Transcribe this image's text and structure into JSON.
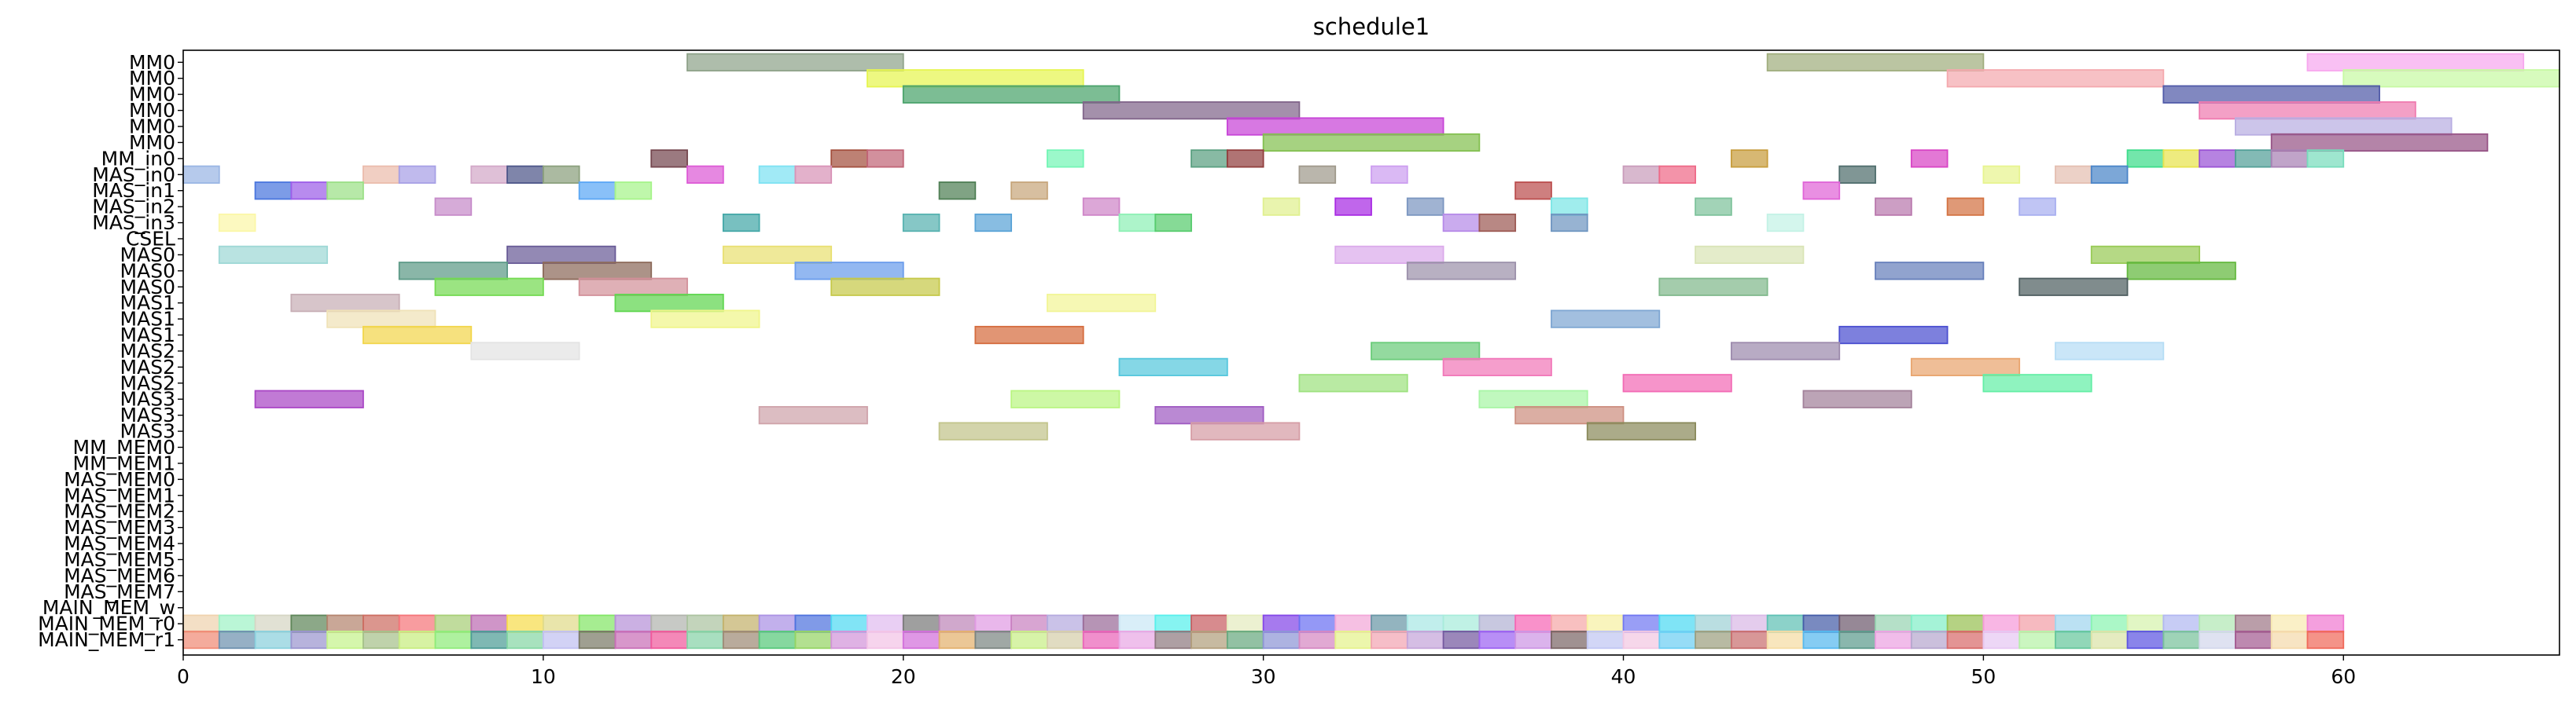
{
  "chart_data": {
    "type": "gantt",
    "title": "schedule1",
    "xlabel": "",
    "ylabel": "",
    "xlim": [
      0,
      66
    ],
    "x_ticks": [
      0,
      10,
      20,
      30,
      40,
      50,
      60
    ],
    "x_tick_labels": [
      "0",
      "10",
      "20",
      "30",
      "40",
      "50",
      "60"
    ],
    "rows": [
      "MM0",
      "MM0",
      "MM0",
      "MM0",
      "MM0",
      "MM0",
      "MM_in0",
      "MAS_in0",
      "MAS_in1",
      "MAS_in2",
      "MAS_in3",
      "CSEL",
      "MAS0",
      "MAS0",
      "MAS0",
      "MAS1",
      "MAS1",
      "MAS1",
      "MAS2",
      "MAS2",
      "MAS2",
      "MAS3",
      "MAS3",
      "MAS3",
      "MM_MEM0",
      "MM_MEM1",
      "MAS_MEM0",
      "MAS_MEM1",
      "MAS_MEM2",
      "MAS_MEM3",
      "MAS_MEM4",
      "MAS_MEM5",
      "MAS_MEM6",
      "MAS_MEM7",
      "MAIN_MEM_w",
      "MAIN_MEM_r0",
      "MAIN_MEM_r1"
    ],
    "bars": [
      [
        0,
        14,
        20,
        "#8fa38a"
      ],
      [
        0,
        44,
        50,
        "#a1ae7e"
      ],
      [
        0,
        59,
        65,
        "#f7a8ee"
      ],
      [
        1,
        19,
        25,
        "#e6f551"
      ],
      [
        1,
        49,
        55,
        "#f4a9ae"
      ],
      [
        1,
        60,
        66,
        "#c8f9a3"
      ],
      [
        2,
        20,
        26,
        "#4aa36b"
      ],
      [
        2,
        55,
        61,
        "#505aa8"
      ],
      [
        3,
        25,
        31,
        "#81658a"
      ],
      [
        3,
        56,
        62,
        "#ef7bb0"
      ],
      [
        4,
        29,
        35,
        "#c744d7"
      ],
      [
        4,
        57,
        63,
        "#b9aee2"
      ],
      [
        5,
        30,
        36,
        "#83c050"
      ],
      [
        5,
        58,
        64,
        "#975486"
      ],
      [
        6,
        13,
        14,
        "#75474f"
      ],
      [
        6,
        18,
        19,
        "#a4503f"
      ],
      [
        6,
        19,
        20,
        "#c16577"
      ],
      [
        6,
        24,
        25,
        "#75f5b6"
      ],
      [
        6,
        28,
        29,
        "#5aa081"
      ],
      [
        6,
        29,
        30,
        "#923f3e"
      ],
      [
        6,
        43,
        44,
        "#c79d3d"
      ],
      [
        6,
        48,
        49,
        "#d844c5"
      ],
      [
        6,
        54,
        55,
        "#3ddc8b"
      ],
      [
        6,
        55,
        56,
        "#e8e34e"
      ],
      [
        6,
        56,
        57,
        "#9a53d5"
      ],
      [
        6,
        57,
        58,
        "#53a098"
      ],
      [
        6,
        58,
        59,
        "#a781b4"
      ],
      [
        6,
        59,
        60,
        "#78dcbc"
      ],
      [
        7,
        0,
        1,
        "#9ab6e4"
      ],
      [
        7,
        5,
        6,
        "#ebbcac"
      ],
      [
        7,
        6,
        7,
        "#a7a0e6"
      ],
      [
        7,
        8,
        9,
        "#d2a8c8"
      ],
      [
        7,
        9,
        10,
        "#4d5689"
      ],
      [
        7,
        10,
        11,
        "#8ba07d"
      ],
      [
        7,
        14,
        15,
        "#dd5ad6"
      ],
      [
        7,
        16,
        17,
        "#7de2f3"
      ],
      [
        7,
        17,
        18,
        "#d893b7"
      ],
      [
        7,
        31,
        32,
        "#a09a8c"
      ],
      [
        7,
        33,
        34,
        "#cc9ef0"
      ],
      [
        7,
        40,
        41,
        "#c99cbb"
      ],
      [
        7,
        41,
        42,
        "#ee6a88"
      ],
      [
        7,
        46,
        47,
        "#4f6d6c"
      ],
      [
        7,
        50,
        51,
        "#e7f48f"
      ],
      [
        7,
        52,
        53,
        "#e4bfb1"
      ],
      [
        7,
        53,
        54,
        "#4a85c8"
      ],
      [
        8,
        2,
        3,
        "#4a76de"
      ],
      [
        8,
        3,
        4,
        "#9d5ee8"
      ],
      [
        8,
        4,
        5,
        "#9be087"
      ],
      [
        8,
        11,
        12,
        "#5ba7f5"
      ],
      [
        8,
        12,
        13,
        "#a6f48a"
      ],
      [
        8,
        21,
        22,
        "#4f7f55"
      ],
      [
        8,
        23,
        24,
        "#c7a67c"
      ],
      [
        8,
        37,
        38,
        "#bb4e4e"
      ],
      [
        8,
        45,
        46,
        "#e064d7"
      ],
      [
        9,
        7,
        8,
        "#c68bc9"
      ],
      [
        9,
        25,
        26,
        "#cf85c8"
      ],
      [
        9,
        30,
        31,
        "#e0f08f"
      ],
      [
        9,
        32,
        33,
        "#a82be3"
      ],
      [
        9,
        34,
        35,
        "#7b96c0"
      ],
      [
        9,
        38,
        39,
        "#7be6e6"
      ],
      [
        9,
        42,
        43,
        "#7ec29b"
      ],
      [
        9,
        47,
        48,
        "#b978ad"
      ],
      [
        9,
        49,
        50,
        "#d37242"
      ],
      [
        9,
        51,
        52,
        "#a7aef0"
      ],
      [
        10,
        1,
        2,
        "#fbf7a8"
      ],
      [
        10,
        15,
        16,
        "#44a8a8"
      ],
      [
        10,
        20,
        21,
        "#57b2b0"
      ],
      [
        10,
        22,
        23,
        "#5aa3d7"
      ],
      [
        10,
        26,
        27,
        "#8ef0b5"
      ],
      [
        10,
        27,
        28,
        "#58cc6e"
      ],
      [
        10,
        35,
        36,
        "#b68ae8"
      ],
      [
        10,
        36,
        37,
        "#9d5a54"
      ],
      [
        10,
        38,
        39,
        "#6f96c1"
      ],
      [
        10,
        44,
        45,
        "#c4f2e6"
      ],
      [
        12,
        1,
        4,
        "#9ed8d6"
      ],
      [
        12,
        9,
        12,
        "#695b97"
      ],
      [
        12,
        15,
        18,
        "#e9e072"
      ],
      [
        12,
        32,
        35,
        "#dbaaeb"
      ],
      [
        12,
        42,
        45,
        "#d9e4b6"
      ],
      [
        12,
        53,
        56,
        "#98cb56"
      ],
      [
        13,
        6,
        9,
        "#5d9a87"
      ],
      [
        13,
        10,
        13,
        "#8c6a5a"
      ],
      [
        13,
        17,
        20,
        "#6a9cec"
      ],
      [
        13,
        34,
        37,
        "#9c91ab"
      ],
      [
        13,
        47,
        50,
        "#667fbb"
      ],
      [
        13,
        54,
        57,
        "#63b83d"
      ],
      [
        14,
        7,
        10,
        "#74da52"
      ],
      [
        14,
        11,
        14,
        "#d2919a"
      ],
      [
        14,
        18,
        21,
        "#c6c94a"
      ],
      [
        14,
        41,
        44,
        "#81b98c"
      ],
      [
        14,
        51,
        54,
        "#4f5f61"
      ],
      [
        15,
        3,
        6,
        "#c7aeb5"
      ],
      [
        15,
        12,
        15,
        "#5fd64f"
      ],
      [
        15,
        24,
        27,
        "#f2f597"
      ],
      [
        16,
        4,
        7,
        "#f0e2b7"
      ],
      [
        16,
        13,
        16,
        "#f0f58a"
      ],
      [
        16,
        38,
        41,
        "#7ea6d2"
      ],
      [
        17,
        5,
        8,
        "#f2d64c"
      ],
      [
        17,
        22,
        25,
        "#d56c3e"
      ],
      [
        17,
        46,
        49,
        "#4b4fd0"
      ],
      [
        18,
        8,
        11,
        "#e3e3e3"
      ],
      [
        18,
        33,
        36,
        "#6bcc7a"
      ],
      [
        18,
        43,
        46,
        "#9d8bad"
      ],
      [
        18,
        52,
        55,
        "#b6ddf5"
      ],
      [
        19,
        26,
        29,
        "#56c7dd"
      ],
      [
        19,
        35,
        38,
        "#f178b9"
      ],
      [
        19,
        48,
        51,
        "#e9a56f"
      ],
      [
        20,
        31,
        34,
        "#9ee280"
      ],
      [
        20,
        40,
        43,
        "#f26bb5"
      ],
      [
        20,
        50,
        53,
        "#64eea6"
      ],
      [
        21,
        2,
        5,
        "#a946c5"
      ],
      [
        21,
        23,
        26,
        "#baf582"
      ],
      [
        21,
        36,
        39,
        "#a8f5a5"
      ],
      [
        21,
        45,
        48,
        "#a2819a"
      ],
      [
        22,
        16,
        19,
        "#cfa3aa"
      ],
      [
        22,
        27,
        30,
        "#9f5bc2"
      ],
      [
        22,
        37,
        40,
        "#cd8f80"
      ],
      [
        23,
        21,
        24,
        "#c2c48b"
      ],
      [
        23,
        28,
        31,
        "#d59da5"
      ],
      [
        23,
        39,
        42,
        "#8a8a5b"
      ],
      [
        35,
        0,
        1,
        "#efd3ae"
      ],
      [
        35,
        1,
        2,
        "#a0f2c6"
      ],
      [
        35,
        2,
        3,
        "#d6d6c4"
      ],
      [
        35,
        3,
        4,
        "#5f875a"
      ],
      [
        35,
        4,
        5,
        "#b4856f"
      ],
      [
        35,
        5,
        6,
        "#cd6e62"
      ],
      [
        35,
        6,
        7,
        "#f5767a"
      ],
      [
        35,
        7,
        8,
        "#a8cf77"
      ],
      [
        35,
        8,
        9,
        "#bd6cb3"
      ],
      [
        35,
        9,
        10,
        "#f7dd4e"
      ],
      [
        35,
        10,
        11,
        "#e1db8b"
      ],
      [
        35,
        11,
        12,
        "#83e667"
      ],
      [
        35,
        12,
        13,
        "#b791d8"
      ],
      [
        35,
        13,
        14,
        "#b2b4ae"
      ],
      [
        35,
        14,
        15,
        "#acc3a1"
      ],
      [
        35,
        15,
        16,
        "#c3b26c"
      ],
      [
        35,
        16,
        17,
        "#ab92e4"
      ],
      [
        35,
        17,
        18,
        "#4f73de"
      ],
      [
        35,
        18,
        19,
        "#50d9f2"
      ],
      [
        35,
        19,
        20,
        "#e0bdf0"
      ],
      [
        35,
        20,
        21,
        "#7a7a7a"
      ],
      [
        35,
        21,
        22,
        "#be87b8"
      ],
      [
        35,
        22,
        23,
        "#e19be3"
      ],
      [
        35,
        23,
        24,
        "#c982c1"
      ],
      [
        35,
        24,
        25,
        "#b5aadf"
      ],
      [
        35,
        25,
        26,
        "#9a6b98"
      ],
      [
        35,
        26,
        27,
        "#cbe8f5"
      ],
      [
        35,
        27,
        28,
        "#58f0ec"
      ],
      [
        35,
        28,
        29,
        "#c85e62"
      ],
      [
        35,
        29,
        30,
        "#e5ecbf"
      ],
      [
        35,
        30,
        31,
        "#8447e8"
      ],
      [
        35,
        31,
        32,
        "#6b70f2"
      ],
      [
        35,
        32,
        33,
        "#f3a7d8"
      ],
      [
        35,
        33,
        34,
        "#6a97a6"
      ],
      [
        35,
        34,
        35,
        "#a9e7e4"
      ],
      [
        35,
        35,
        36,
        "#a8ecdb"
      ],
      [
        35,
        36,
        37,
        "#b3b3d4"
      ],
      [
        35,
        37,
        38,
        "#f767b5"
      ],
      [
        35,
        38,
        39,
        "#f5a8a8"
      ],
      [
        35,
        39,
        40,
        "#f7f0a4"
      ],
      [
        35,
        40,
        41,
        "#7178f2"
      ],
      [
        35,
        41,
        42,
        "#4dd9f2"
      ],
      [
        35,
        42,
        43,
        "#9fd1d6"
      ],
      [
        35,
        43,
        44,
        "#dab9e6"
      ],
      [
        35,
        44,
        45,
        "#5fc1b4"
      ],
      [
        35,
        45,
        46,
        "#455da8"
      ],
      [
        35,
        46,
        47,
        "#6e5a6e"
      ],
      [
        35,
        47,
        48,
        "#99d4b3"
      ],
      [
        35,
        48,
        49,
        "#82efc8"
      ],
      [
        35,
        49,
        50,
        "#98c153"
      ],
      [
        35,
        50,
        51,
        "#f59ad9"
      ],
      [
        35,
        51,
        52,
        "#f29fa7"
      ],
      [
        35,
        52,
        53,
        "#a1d6ee"
      ],
      [
        35,
        53,
        54,
        "#8af4b1"
      ],
      [
        35,
        54,
        55,
        "#d6f2ad"
      ],
      [
        35,
        55,
        56,
        "#b2b8f1"
      ],
      [
        35,
        56,
        57,
        "#b2e8b4"
      ],
      [
        35,
        57,
        58,
        "#9f7888"
      ],
      [
        35,
        58,
        59,
        "#f8eab1"
      ],
      [
        35,
        59,
        60,
        "#f07ad1"
      ],
      [
        36,
        0,
        1,
        "#f08a76"
      ],
      [
        36,
        1,
        2,
        "#6e91af"
      ],
      [
        36,
        2,
        3,
        "#8ad0dd"
      ],
      [
        36,
        3,
        4,
        "#9b95cf"
      ],
      [
        36,
        4,
        5,
        "#c5f38c"
      ],
      [
        36,
        5,
        6,
        "#a6c18b"
      ],
      [
        36,
        6,
        7,
        "#c7ed80"
      ],
      [
        36,
        7,
        8,
        "#8fec7a"
      ],
      [
        36,
        8,
        9,
        "#4e9c96"
      ],
      [
        36,
        9,
        10,
        "#86d7a5"
      ],
      [
        36,
        10,
        11,
        "#c1c0f1"
      ],
      [
        36,
        11,
        12,
        "#7a7a66"
      ],
      [
        36,
        12,
        13,
        "#c96fb7"
      ],
      [
        36,
        13,
        14,
        "#f05a9c"
      ],
      [
        36,
        14,
        15,
        "#86d3a7"
      ],
      [
        36,
        15,
        16,
        "#9e8b76"
      ],
      [
        36,
        16,
        17,
        "#57c97a"
      ],
      [
        36,
        17,
        18,
        "#95d465"
      ],
      [
        36,
        18,
        19,
        "#d394d9"
      ],
      [
        36,
        19,
        20,
        "#f3c4e6"
      ],
      [
        36,
        20,
        21,
        "#d26fdb"
      ],
      [
        36,
        21,
        22,
        "#e3b16d"
      ],
      [
        36,
        22,
        23,
        "#7c8682"
      ],
      [
        36,
        23,
        24,
        "#c8ee87"
      ],
      [
        36,
        24,
        25,
        "#d6cfab"
      ],
      [
        36,
        25,
        26,
        "#ea64b9"
      ],
      [
        36,
        26,
        27,
        "#e9a7e4"
      ],
      [
        36,
        27,
        28,
        "#8f7a80"
      ],
      [
        36,
        28,
        29,
        "#b29f7d"
      ],
      [
        36,
        29,
        30,
        "#68a97f"
      ],
      [
        36,
        30,
        31,
        "#8e95d6"
      ],
      [
        36,
        31,
        32,
        "#d588c2"
      ],
      [
        36,
        32,
        33,
        "#e5f28c"
      ],
      [
        36,
        33,
        34,
        "#f2a5b3"
      ],
      [
        36,
        34,
        35,
        "#c5a5d9"
      ],
      [
        36,
        35,
        36,
        "#7459a0"
      ],
      [
        36,
        36,
        37,
        "#9d62f2"
      ],
      [
        36,
        37,
        38,
        "#cd95e4"
      ],
      [
        36,
        38,
        39,
        "#7b6666"
      ],
      [
        36,
        39,
        40,
        "#c1c6f3"
      ],
      [
        36,
        40,
        41,
        "#f2c7e2"
      ],
      [
        36,
        41,
        42,
        "#6ecff3"
      ],
      [
        36,
        42,
        43,
        "#9d9f80"
      ],
      [
        36,
        43,
        44,
        "#c96f6f"
      ],
      [
        36,
        44,
        45,
        "#f5dca4"
      ],
      [
        36,
        45,
        46,
        "#56b9ef"
      ],
      [
        36,
        46,
        47,
        "#5d9b8d"
      ],
      [
        36,
        47,
        48,
        "#eca2e2"
      ],
      [
        36,
        48,
        49,
        "#b7a7ce"
      ],
      [
        36,
        49,
        50,
        "#d86b6b"
      ],
      [
        36,
        50,
        51,
        "#e6c7f2"
      ],
      [
        36,
        51,
        52,
        "#b7f2a8"
      ],
      [
        36,
        52,
        53,
        "#66c79d"
      ],
      [
        36,
        53,
        54,
        "#dbe3a7"
      ],
      [
        36,
        54,
        55,
        "#5d55e2"
      ],
      [
        36,
        55,
        56,
        "#79c29b"
      ],
      [
        36,
        56,
        57,
        "#d3d7eb"
      ],
      [
        36,
        57,
        58,
        "#a45c91"
      ],
      [
        36,
        58,
        59,
        "#f4d9ac"
      ],
      [
        36,
        59,
        60,
        "#f06a5a"
      ]
    ]
  }
}
